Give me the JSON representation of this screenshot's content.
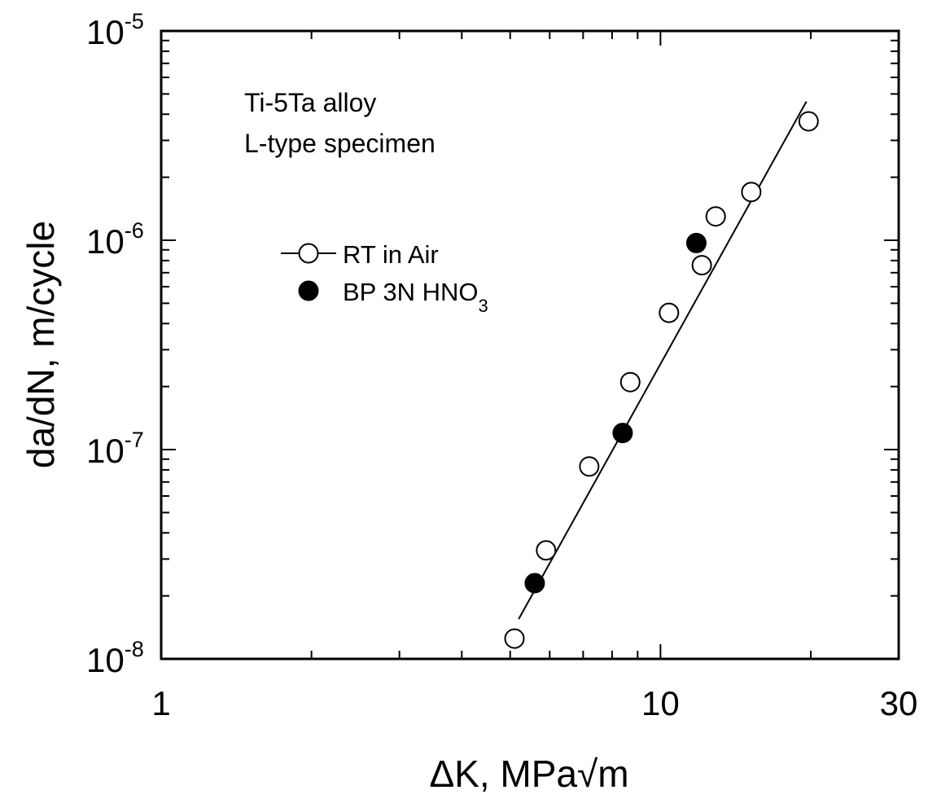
{
  "chart_data": {
    "type": "scatter",
    "title": "",
    "xlabel": "ΔK, MPa√m",
    "ylabel": "da/dN, m/cycle",
    "xscale": "log",
    "yscale": "log",
    "xlim": [
      1,
      30
    ],
    "ylim": [
      1e-08,
      1e-05
    ],
    "x_ticks": [
      {
        "value": 1,
        "label": "1"
      },
      {
        "value": 10,
        "label": "10"
      },
      {
        "value": 30,
        "label": "30"
      }
    ],
    "y_ticks": [
      {
        "value": 1e-08,
        "base": "10",
        "exp": "-8"
      },
      {
        "value": 1e-07,
        "base": "10",
        "exp": "-7"
      },
      {
        "value": 1e-06,
        "base": "10",
        "exp": "-6"
      },
      {
        "value": 1e-05,
        "base": "10",
        "exp": "-5"
      }
    ],
    "grid": false,
    "legend_position": "upper-left",
    "annotations": [
      "Ti-5Ta alloy",
      "L-type specimen"
    ],
    "series": [
      {
        "name": "RT in Air",
        "marker": "open-circle",
        "x": [
          5.1,
          5.9,
          7.2,
          8.7,
          10.4,
          12.1,
          12.9,
          15.2,
          19.8
        ],
        "y": [
          1.25e-08,
          3.3e-08,
          8.3e-08,
          2.1e-07,
          4.5e-07,
          7.6e-07,
          1.3e-06,
          1.7e-06,
          3.7e-06
        ]
      },
      {
        "name": "BP 3N HNO",
        "name_subscript": "3",
        "marker": "filled-circle",
        "x": [
          5.6,
          8.4,
          11.8
        ],
        "y": [
          2.3e-08,
          1.2e-07,
          9.7e-07
        ]
      }
    ],
    "fit_line": {
      "x": [
        5.2,
        19.6
      ],
      "y": [
        1.55e-08,
        4.6e-06
      ]
    }
  }
}
